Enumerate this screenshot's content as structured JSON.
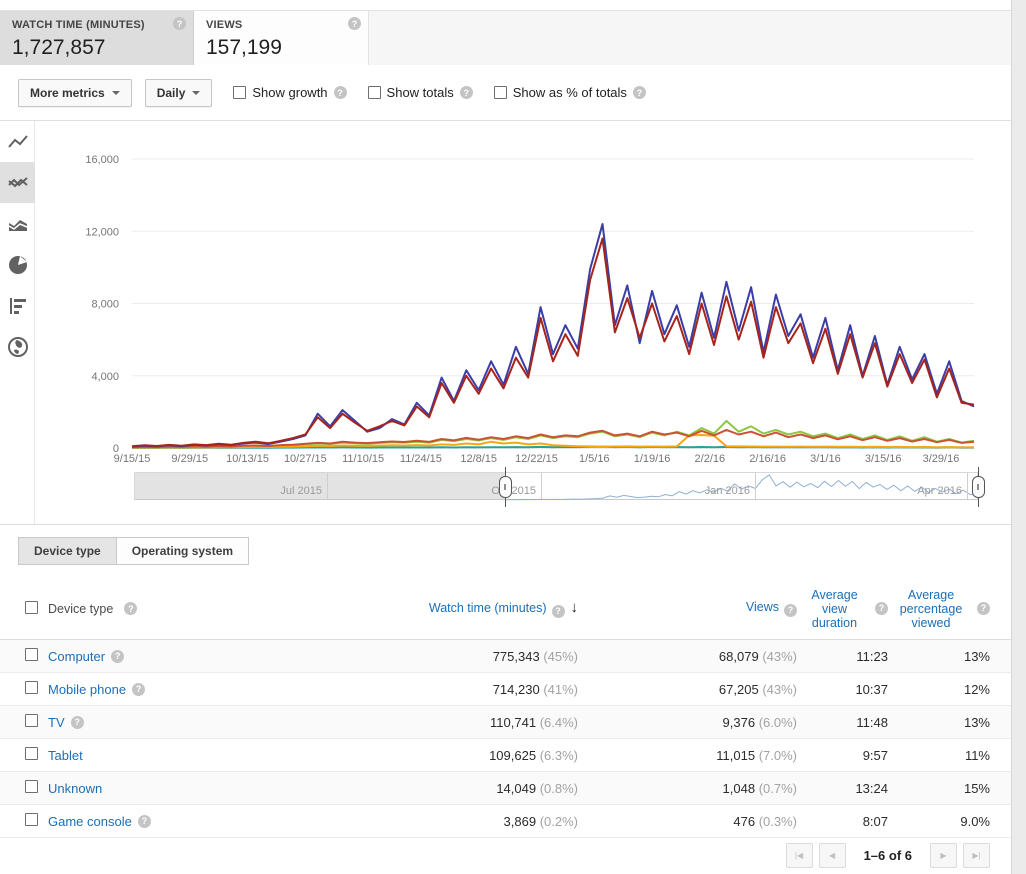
{
  "metrics": {
    "watch_time": {
      "label": "WATCH TIME (MINUTES)",
      "value": "1,727,857"
    },
    "views": {
      "label": "VIEWS",
      "value": "157,199"
    }
  },
  "toolbar": {
    "more_metrics": "More metrics",
    "daily": "Daily",
    "checkboxes": [
      "Show growth",
      "Show totals",
      "Show as % of totals"
    ]
  },
  "chart_data": {
    "type": "line",
    "grid": true,
    "legend": "none",
    "ylim": [
      0,
      16000
    ],
    "y_ticks": [
      {
        "value": 0,
        "label": "0"
      },
      {
        "value": 4000,
        "label": "4,000"
      },
      {
        "value": 8000,
        "label": "8,000"
      },
      {
        "value": 12000,
        "label": "12,000"
      },
      {
        "value": 16000,
        "label": "16,000"
      }
    ],
    "x_tick_labels": [
      "9/15/15",
      "9/29/15",
      "10/13/15",
      "10/27/15",
      "11/10/15",
      "11/24/15",
      "12/8/15",
      "12/22/15",
      "1/5/16",
      "1/19/16",
      "2/2/16",
      "2/16/16",
      "3/1/16",
      "3/15/16",
      "3/29/16"
    ],
    "x_tick_day_offsets": [
      0,
      14,
      28,
      42,
      56,
      70,
      84,
      98,
      112,
      126,
      140,
      154,
      168,
      182,
      196
    ],
    "total_days": 204,
    "point_step_days": 3,
    "series": [
      {
        "name": "Game console",
        "color": "#2aa198",
        "values": [
          5,
          8,
          6,
          10,
          7,
          12,
          9,
          14,
          10,
          15,
          18,
          14,
          20,
          22,
          25,
          30,
          26,
          32,
          28,
          24,
          28,
          30,
          26,
          30,
          26,
          38,
          30,
          42,
          34,
          46,
          36,
          50,
          40,
          60,
          45,
          55,
          48,
          70,
          80,
          50,
          60,
          45,
          62,
          48,
          55,
          42,
          58,
          44,
          60,
          46,
          55,
          40,
          52,
          42,
          48,
          36,
          46,
          32,
          42,
          30,
          40,
          28,
          36,
          26,
          34,
          24,
          32,
          22,
          20
        ]
      },
      {
        "name": "TV",
        "color": "#8ec641",
        "values": [
          30,
          50,
          40,
          60,
          50,
          70,
          60,
          80,
          70,
          90,
          110,
          100,
          130,
          150,
          200,
          250,
          220,
          300,
          260,
          240,
          280,
          320,
          300,
          350,
          300,
          450,
          380,
          500,
          420,
          550,
          450,
          600,
          500,
          700,
          550,
          650,
          600,
          800,
          900,
          650,
          750,
          600,
          850,
          700,
          900,
          700,
          1100,
          800,
          1500,
          900,
          1200,
          800,
          1000,
          750,
          900,
          650,
          800,
          550,
          750,
          500,
          700,
          450,
          650,
          400,
          600,
          350,
          500,
          300,
          400
        ]
      },
      {
        "name": "Unknown",
        "color": "#f5a812",
        "values": [
          20,
          30,
          25,
          35,
          30,
          40,
          35,
          45,
          40,
          50,
          60,
          55,
          70,
          80,
          100,
          120,
          110,
          140,
          130,
          120,
          135,
          150,
          140,
          160,
          140,
          200,
          170,
          250,
          200,
          350,
          250,
          300,
          200,
          250,
          150,
          120,
          100,
          90,
          80,
          85,
          90,
          80,
          85,
          80,
          90,
          700,
          720,
          680,
          100,
          90,
          85,
          80,
          75,
          70,
          80,
          70,
          75,
          65,
          70,
          60,
          65,
          55,
          60,
          50,
          55,
          45,
          50,
          40,
          45
        ]
      },
      {
        "name": "Tablet",
        "color": "#cb5234",
        "values": [
          40,
          60,
          50,
          80,
          60,
          90,
          70,
          100,
          80,
          120,
          140,
          110,
          160,
          180,
          240,
          280,
          250,
          350,
          300,
          270,
          320,
          360,
          330,
          400,
          340,
          500,
          420,
          560,
          460,
          600,
          500,
          650,
          550,
          750,
          600,
          700,
          650,
          850,
          950,
          700,
          800,
          650,
          900,
          750,
          850,
          650,
          950,
          700,
          1000,
          750,
          900,
          650,
          850,
          600,
          750,
          550,
          700,
          480,
          650,
          430,
          600,
          400,
          550,
          360,
          500,
          320,
          450,
          280,
          350
        ]
      },
      {
        "name": "Computer",
        "color": "#3b3ea6",
        "values": [
          80,
          120,
          90,
          150,
          100,
          180,
          140,
          200,
          160,
          250,
          300,
          220,
          350,
          500,
          700,
          1900,
          1200,
          2100,
          1500,
          900,
          1100,
          1600,
          1300,
          2500,
          1800,
          3900,
          2600,
          4300,
          3200,
          4800,
          3500,
          5600,
          4100,
          7800,
          5200,
          6800,
          5500,
          9900,
          12400,
          6800,
          9000,
          5800,
          8700,
          6300,
          7900,
          5600,
          8600,
          6100,
          9200,
          6500,
          8900,
          5300,
          8500,
          6200,
          7400,
          5000,
          7200,
          4300,
          6800,
          4000,
          6200,
          3500,
          5600,
          3800,
          5200,
          3000,
          4800,
          2600,
          2300
        ]
      },
      {
        "name": "Mobile phone",
        "color": "#a8241b",
        "values": [
          100,
          150,
          110,
          170,
          130,
          200,
          160,
          230,
          180,
          280,
          350,
          260,
          400,
          550,
          750,
          1700,
          1100,
          1900,
          1400,
          950,
          1200,
          1500,
          1250,
          2300,
          1700,
          3600,
          2500,
          4000,
          3000,
          4400,
          3300,
          5000,
          3900,
          7200,
          4800,
          6300,
          5100,
          9300,
          11600,
          6400,
          8300,
          6100,
          8000,
          5900,
          7300,
          5200,
          8000,
          5700,
          8400,
          6000,
          8100,
          5000,
          7800,
          5800,
          6900,
          4700,
          6600,
          4100,
          6300,
          3900,
          5800,
          3400,
          5200,
          3600,
          4900,
          2800,
          4400,
          2500,
          2400
        ]
      }
    ]
  },
  "scrubber": {
    "labels": [
      "Jul 2015",
      "Oct 2015",
      "Jan 2016",
      "Apr 2016"
    ],
    "spark_color": "#8fb0d4"
  },
  "tabs": [
    {
      "label": "Device type",
      "selected": true
    },
    {
      "label": "Operating system",
      "selected": false
    }
  ],
  "table": {
    "headers": {
      "device_type": "Device type",
      "watch_time": "Watch time (minutes)",
      "views": "Views",
      "avg_view_duration_lines": [
        "Average",
        "view",
        "duration"
      ],
      "avg_percentage_lines": [
        "Average",
        "percentage",
        "viewed"
      ]
    },
    "rows": [
      {
        "name": "Computer",
        "help": true,
        "watch": "775,343",
        "watch_pct": "(45%)",
        "views": "68,079",
        "views_pct": "(43%)",
        "duration": "11:23",
        "pct": "13%"
      },
      {
        "name": "Mobile phone",
        "help": true,
        "watch": "714,230",
        "watch_pct": "(41%)",
        "views": "67,205",
        "views_pct": "(43%)",
        "duration": "10:37",
        "pct": "12%"
      },
      {
        "name": "TV",
        "help": true,
        "watch": "110,741",
        "watch_pct": "(6.4%)",
        "views": "9,376",
        "views_pct": "(6.0%)",
        "duration": "11:48",
        "pct": "13%"
      },
      {
        "name": "Tablet",
        "help": false,
        "watch": "109,625",
        "watch_pct": "(6.3%)",
        "views": "11,015",
        "views_pct": "(7.0%)",
        "duration": "9:57",
        "pct": "11%"
      },
      {
        "name": "Unknown",
        "help": false,
        "watch": "14,049",
        "watch_pct": "(0.8%)",
        "views": "1,048",
        "views_pct": "(0.7%)",
        "duration": "13:24",
        "pct": "15%"
      },
      {
        "name": "Game console",
        "help": true,
        "watch": "3,869",
        "watch_pct": "(0.2%)",
        "views": "476",
        "views_pct": "(0.3%)",
        "duration": "8:07",
        "pct": "9.0%"
      }
    ]
  },
  "pagination": {
    "label": "1–6 of 6",
    "icons": {
      "first": "|◀",
      "prev": "◀",
      "next": "▶",
      "last": "▶|"
    }
  }
}
